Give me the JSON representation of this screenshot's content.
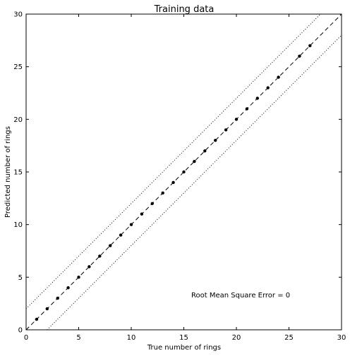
{
  "chart_data": {
    "type": "scatter",
    "title": "Training data",
    "xlabel": "True number of rings",
    "ylabel": "Predicted number of rings",
    "xlim": [
      0,
      30
    ],
    "ylim": [
      0,
      30
    ],
    "xticks": [
      "0",
      "5",
      "10",
      "15",
      "20",
      "25",
      "30"
    ],
    "yticks": [
      "0",
      "5",
      "10",
      "15",
      "20",
      "25",
      "30"
    ],
    "grid": false,
    "annotation": "Root Mean Square Error = 0",
    "points": [
      [
        1,
        1
      ],
      [
        2,
        2
      ],
      [
        3,
        3
      ],
      [
        4,
        4
      ],
      [
        5,
        5
      ],
      [
        6,
        6
      ],
      [
        7,
        7
      ],
      [
        8,
        8
      ],
      [
        9,
        9
      ],
      [
        10,
        10
      ],
      [
        11,
        11
      ],
      [
        12,
        12
      ],
      [
        13,
        13
      ],
      [
        14,
        14
      ],
      [
        15,
        15
      ],
      [
        16,
        16
      ],
      [
        17,
        17
      ],
      [
        18,
        18
      ],
      [
        19,
        19
      ],
      [
        20,
        20
      ],
      [
        21,
        21
      ],
      [
        22,
        22
      ],
      [
        23,
        23
      ],
      [
        24,
        24
      ],
      [
        26,
        26
      ],
      [
        27,
        27
      ]
    ],
    "reference_lines": [
      {
        "style": "dashed",
        "x": [
          0,
          30
        ],
        "y": [
          0,
          30
        ]
      },
      {
        "style": "dotted",
        "x": [
          0,
          28
        ],
        "y": [
          2,
          30
        ]
      },
      {
        "style": "dotted",
        "x": [
          2,
          30
        ],
        "y": [
          0,
          28
        ]
      }
    ],
    "colors": {
      "points": "#000000",
      "lines": "#000000",
      "background": "#ffffff"
    }
  }
}
